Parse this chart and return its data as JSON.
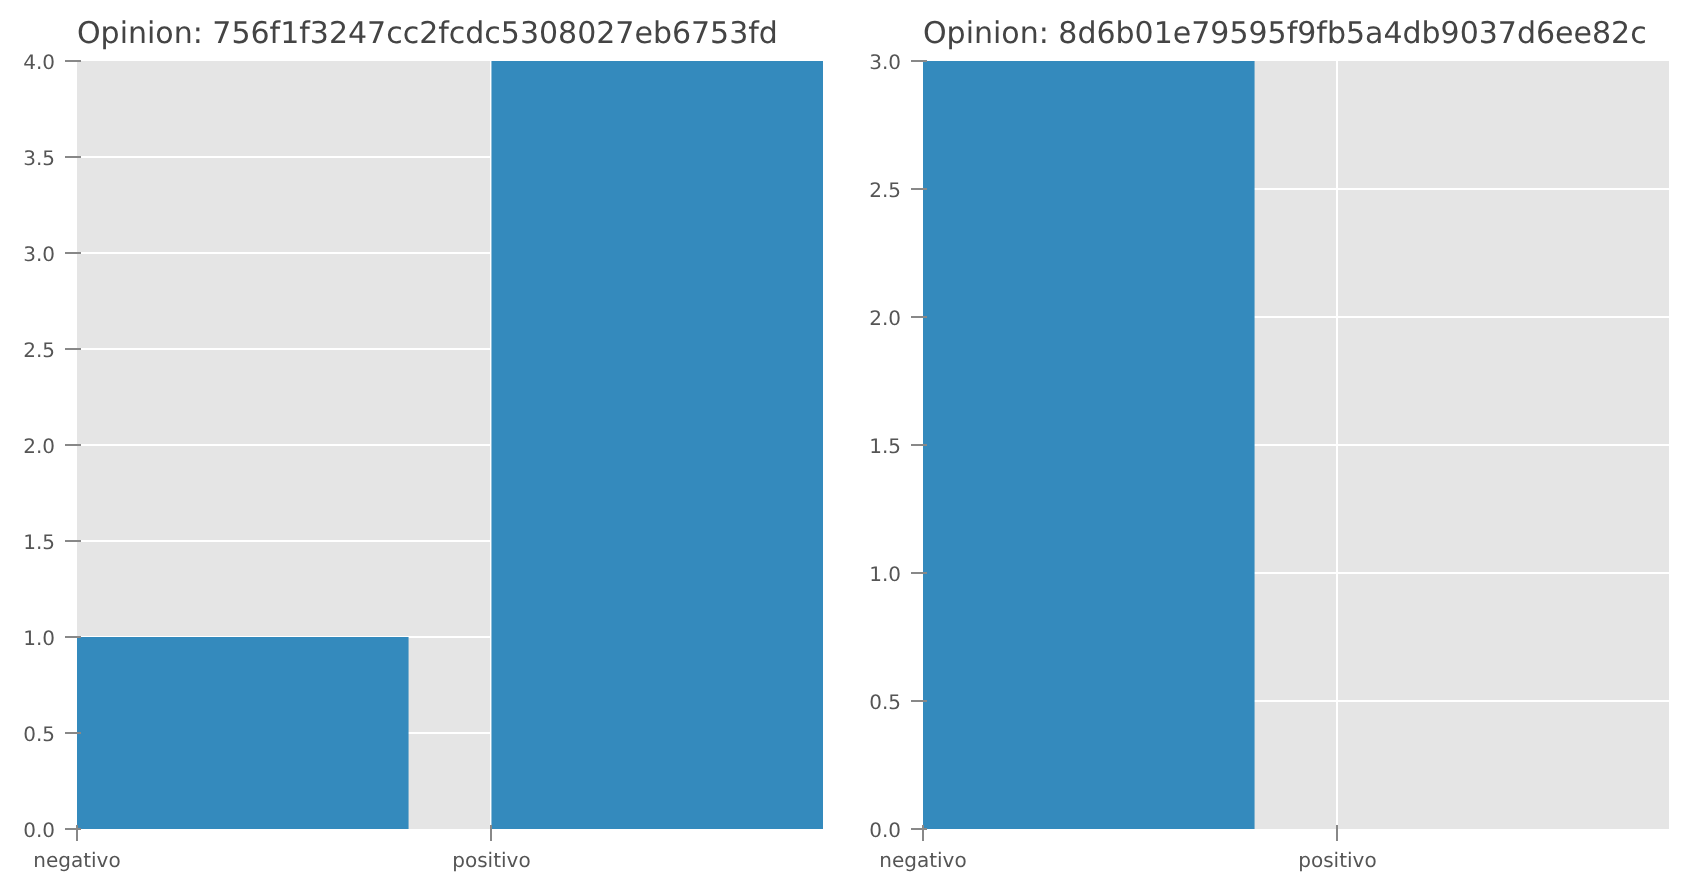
{
  "chart_data": [
    {
      "type": "bar",
      "title": "Opinion: 756f1f3247cc2fcdc5308027eb6753fd",
      "categories": [
        "negativo",
        "positivo"
      ],
      "values": [
        1,
        4
      ],
      "color": "#348abd",
      "ylim": [
        0,
        4
      ],
      "yticks": [
        {
          "value": 0,
          "label": "0.0"
        },
        0.5,
        {
          "value": 1,
          "label": "1.0"
        },
        1.5,
        {
          "value": 2,
          "label": "2.0"
        },
        2.5,
        {
          "value": 3,
          "label": "3.0"
        },
        3.5,
        {
          "value": 4,
          "label": "4.0"
        }
      ],
      "grid": true
    },
    {
      "type": "bar",
      "title": "Opinion: 8d6b01e79595f9fb5a4db9037d6ee82c",
      "categories": [
        "negativo",
        "positivo"
      ],
      "values": [
        3,
        0
      ],
      "color": "#348abd",
      "ylim": [
        0,
        3
      ],
      "yticks": [
        {
          "value": 0,
          "label": "0.0"
        },
        0.5,
        {
          "value": 1,
          "label": "1.0"
        },
        1.5,
        {
          "value": 2,
          "label": "2.0"
        },
        2.5,
        {
          "value": 3,
          "label": "3.0"
        }
      ],
      "grid": true
    }
  ]
}
